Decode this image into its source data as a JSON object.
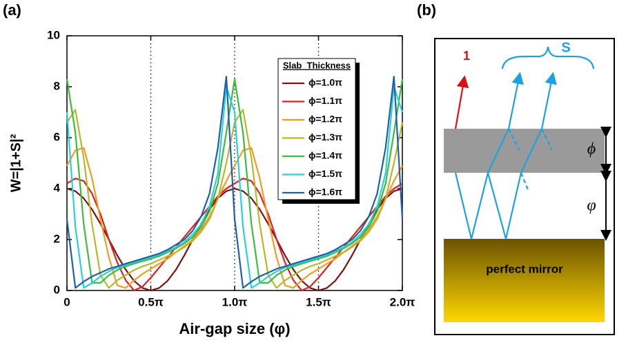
{
  "chart_data": {
    "type": "line",
    "panel_label": "(a)",
    "xlabel": "Air-gap size (φ)",
    "ylabel": "W=|1+S|²",
    "xlim": [
      0,
      2.0
    ],
    "ylim": [
      0,
      10
    ],
    "xticks": [
      0,
      {
        "value": 0.5,
        "label": "0.5π"
      },
      {
        "value": 1.0,
        "label": "1.0π"
      },
      {
        "value": 1.5,
        "label": "1.5π"
      },
      {
        "value": 2.0,
        "label": "2.0π"
      }
    ],
    "yticks": [
      0,
      2,
      4,
      6,
      8,
      10
    ],
    "x_grid": true,
    "legend_title": "Slab  Thickness",
    "legend": "upper right",
    "x": [
      0,
      0.05,
      0.1,
      0.15,
      0.2,
      0.25,
      0.3,
      0.35,
      0.4,
      0.45,
      0.5,
      0.55,
      0.6,
      0.65,
      0.7,
      0.75,
      0.8,
      0.85,
      0.9,
      0.95,
      1.0,
      1.05,
      1.1,
      1.15,
      1.2,
      1.25,
      1.3,
      1.35,
      1.4,
      1.45,
      1.5,
      1.55,
      1.6,
      1.65,
      1.7,
      1.75,
      1.8,
      1.85,
      1.9,
      1.95,
      2.0
    ],
    "series": [
      {
        "name": "ϕ=1.0π",
        "color": "#7b1010",
        "values": [
          4.0,
          3.9,
          3.62,
          3.18,
          2.62,
          2.0,
          1.38,
          0.82,
          0.38,
          0.1,
          0,
          0.1,
          0.38,
          0.82,
          1.38,
          2.0,
          2.62,
          3.18,
          3.62,
          3.9,
          4.0,
          3.9,
          3.62,
          3.18,
          2.62,
          2.0,
          1.38,
          0.82,
          0.38,
          0.1,
          0,
          0.1,
          0.38,
          0.82,
          1.38,
          2.0,
          2.62,
          3.18,
          3.62,
          3.9,
          4.0
        ]
      },
      {
        "name": "ϕ=1.1π",
        "color": "#e02020",
        "values": [
          4.2,
          4.4,
          4.3,
          3.8,
          3.0,
          2.0,
          1.1,
          0.4,
          0.0,
          0.15,
          0.5,
          0.9,
          1.3,
          1.7,
          2.1,
          2.5,
          2.9,
          3.3,
          3.7,
          4.0,
          4.2,
          4.4,
          4.3,
          3.8,
          3.0,
          2.0,
          1.1,
          0.4,
          0.0,
          0.15,
          0.5,
          0.9,
          1.3,
          1.7,
          2.1,
          2.5,
          2.9,
          3.3,
          3.7,
          4.0,
          4.2
        ]
      },
      {
        "name": "ϕ=1.2π",
        "color": "#f39c1f",
        "values": [
          4.9,
          5.5,
          5.6,
          4.4,
          2.8,
          1.3,
          0.2,
          0.1,
          0.4,
          0.65,
          0.85,
          1.05,
          1.25,
          1.5,
          1.75,
          2.0,
          2.4,
          2.9,
          3.6,
          4.3,
          4.9,
          5.5,
          5.6,
          4.4,
          2.8,
          1.3,
          0.2,
          0.1,
          0.4,
          0.65,
          0.85,
          1.05,
          1.25,
          1.5,
          1.75,
          2.0,
          2.4,
          2.9,
          3.6,
          4.3,
          4.9
        ]
      },
      {
        "name": "ϕ=1.3π",
        "color": "#b7b72a",
        "values": [
          6.6,
          7.1,
          5.2,
          2.6,
          0.6,
          0.1,
          0.4,
          0.6,
          0.8,
          0.95,
          1.05,
          1.2,
          1.35,
          1.5,
          1.7,
          1.95,
          2.3,
          2.8,
          3.6,
          5.0,
          6.6,
          7.1,
          5.2,
          2.6,
          0.6,
          0.1,
          0.4,
          0.6,
          0.8,
          0.95,
          1.05,
          1.2,
          1.35,
          1.5,
          1.7,
          1.95,
          2.3,
          2.8,
          3.6,
          5.0,
          6.6
        ]
      },
      {
        "name": "ϕ=1.4π",
        "color": "#3dbb3d",
        "values": [
          8.3,
          6.2,
          2.6,
          0.3,
          0.3,
          0.6,
          0.8,
          0.95,
          1.05,
          1.15,
          1.25,
          1.35,
          1.5,
          1.65,
          1.85,
          2.1,
          2.5,
          3.1,
          4.2,
          6.2,
          8.3,
          6.2,
          2.6,
          0.3,
          0.3,
          0.6,
          0.8,
          0.95,
          1.05,
          1.15,
          1.25,
          1.35,
          1.5,
          1.65,
          1.85,
          2.1,
          2.5,
          3.1,
          4.2,
          6.2,
          8.3
        ]
      },
      {
        "name": "ϕ=1.5π",
        "color": "#2ad0d8",
        "values": [
          7.0,
          2.5,
          0.1,
          0.3,
          0.55,
          0.75,
          0.9,
          1.0,
          1.1,
          1.2,
          1.3,
          1.4,
          1.55,
          1.7,
          1.9,
          2.2,
          2.6,
          3.3,
          4.6,
          8.0,
          7.0,
          2.5,
          0.1,
          0.3,
          0.55,
          0.75,
          0.9,
          1.0,
          1.1,
          1.2,
          1.3,
          1.4,
          1.55,
          1.7,
          1.9,
          2.2,
          2.6,
          3.3,
          4.6,
          8.0,
          7.0
        ]
      },
      {
        "name": "ϕ=1.6π",
        "color": "#1f5fa8",
        "values": [
          2.8,
          0.1,
          0.35,
          0.55,
          0.7,
          0.85,
          0.95,
          1.05,
          1.15,
          1.25,
          1.35,
          1.45,
          1.6,
          1.8,
          2.0,
          2.35,
          2.9,
          3.8,
          5.6,
          8.4,
          2.8,
          0.1,
          0.35,
          0.55,
          0.7,
          0.85,
          0.95,
          1.05,
          1.15,
          1.25,
          1.35,
          1.45,
          1.6,
          1.8,
          2.0,
          2.35,
          2.9,
          3.8,
          5.6,
          8.4,
          2.8
        ]
      }
    ]
  },
  "diagram": {
    "panel_label": "(b)",
    "incident_label": "1",
    "reflected_label": "S",
    "slab_label": "ϕ",
    "gap_label": "φ",
    "mirror_label": "perfect mirror"
  }
}
